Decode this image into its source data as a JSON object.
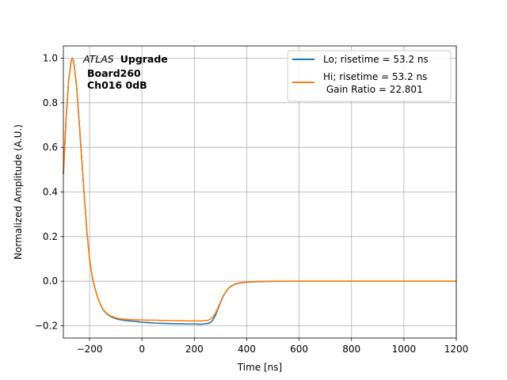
{
  "chart_data": {
    "type": "line",
    "title": "",
    "xlabel": "Time [ns]",
    "ylabel": "Normalized Amplitude (A.U.)",
    "xlim": [
      -300,
      1200
    ],
    "ylim": [
      -0.255,
      1.055
    ],
    "xticks": [
      -200,
      0,
      200,
      400,
      600,
      800,
      1000,
      1200
    ],
    "xtick_labels": [
      "−200",
      "0",
      "200",
      "400",
      "600",
      "800",
      "1000",
      "1200"
    ],
    "yticks": [
      -0.2,
      0.0,
      0.2,
      0.4,
      0.6,
      0.8,
      1.0
    ],
    "ytick_labels": [
      "−0.2",
      "0.0",
      "0.2",
      "0.4",
      "0.6",
      "0.8",
      "1.0"
    ],
    "grid": true,
    "legend_position": "top-right",
    "annotation": {
      "experiment": "ATLAS",
      "tag": "Upgrade",
      "line2": "Board260",
      "line3": "Ch016 0dB"
    },
    "series": [
      {
        "name": "Lo; risetime = 53.2 ns",
        "color": "#1f77b4",
        "x": [
          -300,
          -290,
          -280,
          -270,
          -265,
          -260,
          -250,
          -240,
          -230,
          -220,
          -210,
          -200,
          -190,
          -180,
          -170,
          -160,
          -150,
          -140,
          -130,
          -120,
          -110,
          -100,
          -90,
          -80,
          -70,
          -60,
          -50,
          -40,
          -30,
          -20,
          -10,
          0,
          25,
          50,
          75,
          100,
          125,
          150,
          175,
          200,
          225,
          250,
          262,
          270,
          280,
          290,
          300,
          310,
          320,
          330,
          340,
          350,
          370,
          390,
          410,
          450,
          500,
          600,
          700,
          800,
          900,
          1000,
          1100,
          1200
        ],
        "y": [
          0.48,
          0.72,
          0.9,
          0.99,
          1.0,
          0.98,
          0.88,
          0.72,
          0.55,
          0.38,
          0.22,
          0.1,
          0.02,
          -0.03,
          -0.07,
          -0.1,
          -0.125,
          -0.14,
          -0.15,
          -0.158,
          -0.164,
          -0.168,
          -0.171,
          -0.173,
          -0.175,
          -0.177,
          -0.178,
          -0.179,
          -0.18,
          -0.181,
          -0.183,
          -0.184,
          -0.186,
          -0.188,
          -0.189,
          -0.19,
          -0.191,
          -0.191,
          -0.192,
          -0.192,
          -0.193,
          -0.19,
          -0.185,
          -0.175,
          -0.155,
          -0.125,
          -0.095,
          -0.068,
          -0.048,
          -0.033,
          -0.023,
          -0.016,
          -0.009,
          -0.006,
          -0.004,
          -0.002,
          -0.001,
          0.0,
          0.0,
          0.0,
          0.0,
          0.0,
          0.0,
          0.0
        ]
      },
      {
        "name": "Hi; risetime = 53.2 ns\n Gain Ratio = 22.801",
        "color": "#ff7f0e",
        "x": [
          -300,
          -290,
          -280,
          -270,
          -265,
          -260,
          -250,
          -240,
          -230,
          -220,
          -210,
          -200,
          -190,
          -180,
          -170,
          -160,
          -150,
          -140,
          -130,
          -120,
          -110,
          -100,
          -90,
          -80,
          -70,
          -60,
          -50,
          -40,
          -30,
          -20,
          -10,
          0,
          25,
          50,
          75,
          100,
          125,
          150,
          175,
          200,
          225,
          250,
          262,
          270,
          280,
          290,
          300,
          310,
          320,
          330,
          340,
          350,
          370,
          390,
          410,
          450,
          500,
          600,
          700,
          800,
          900,
          1000,
          1100,
          1200
        ],
        "y": [
          0.48,
          0.72,
          0.9,
          0.99,
          1.0,
          0.98,
          0.88,
          0.72,
          0.55,
          0.38,
          0.22,
          0.1,
          0.02,
          -0.03,
          -0.07,
          -0.1,
          -0.123,
          -0.138,
          -0.148,
          -0.155,
          -0.16,
          -0.164,
          -0.167,
          -0.169,
          -0.17,
          -0.171,
          -0.172,
          -0.172,
          -0.173,
          -0.173,
          -0.174,
          -0.174,
          -0.175,
          -0.175,
          -0.176,
          -0.176,
          -0.177,
          -0.177,
          -0.178,
          -0.178,
          -0.178,
          -0.176,
          -0.17,
          -0.162,
          -0.145,
          -0.12,
          -0.092,
          -0.066,
          -0.047,
          -0.032,
          -0.022,
          -0.015,
          -0.008,
          -0.005,
          -0.003,
          -0.001,
          0.0,
          0.0,
          0.0,
          0.0,
          0.0,
          0.0,
          0.0,
          0.0
        ]
      }
    ]
  }
}
